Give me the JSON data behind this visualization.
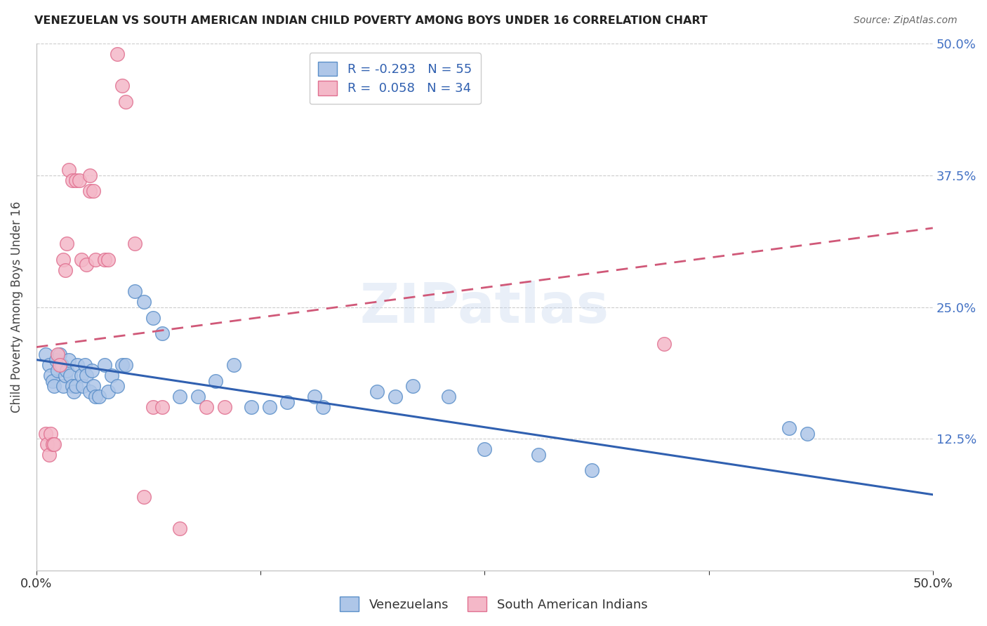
{
  "title": "VENEZUELAN VS SOUTH AMERICAN INDIAN CHILD POVERTY AMONG BOYS UNDER 16 CORRELATION CHART",
  "source": "Source: ZipAtlas.com",
  "ylabel": "Child Poverty Among Boys Under 16",
  "xlim": [
    0.0,
    0.5
  ],
  "ylim": [
    0.0,
    0.5
  ],
  "blue_R": "-0.293",
  "blue_N": "55",
  "pink_R": "0.058",
  "pink_N": "34",
  "blue_color": "#aec6e8",
  "pink_color": "#f4b8c8",
  "blue_edge_color": "#5b8fc9",
  "pink_edge_color": "#e07090",
  "blue_line_color": "#3060b0",
  "pink_line_color": "#d05878",
  "watermark": "ZIPatlas",
  "legend_label_blue": "Venezuelans",
  "legend_label_pink": "South American Indians",
  "blue_points_x": [
    0.005,
    0.007,
    0.008,
    0.009,
    0.01,
    0.011,
    0.012,
    0.013,
    0.014,
    0.015,
    0.016,
    0.017,
    0.018,
    0.019,
    0.02,
    0.021,
    0.022,
    0.023,
    0.025,
    0.026,
    0.027,
    0.028,
    0.03,
    0.031,
    0.032,
    0.033,
    0.035,
    0.038,
    0.04,
    0.042,
    0.045,
    0.048,
    0.05,
    0.055,
    0.06,
    0.065,
    0.07,
    0.08,
    0.09,
    0.1,
    0.11,
    0.12,
    0.13,
    0.14,
    0.155,
    0.16,
    0.19,
    0.2,
    0.21,
    0.23,
    0.25,
    0.28,
    0.31,
    0.42,
    0.43
  ],
  "blue_points_y": [
    0.205,
    0.195,
    0.185,
    0.18,
    0.175,
    0.2,
    0.19,
    0.205,
    0.195,
    0.175,
    0.185,
    0.19,
    0.2,
    0.185,
    0.175,
    0.17,
    0.175,
    0.195,
    0.185,
    0.175,
    0.195,
    0.185,
    0.17,
    0.19,
    0.175,
    0.165,
    0.165,
    0.195,
    0.17,
    0.185,
    0.175,
    0.195,
    0.195,
    0.265,
    0.255,
    0.24,
    0.225,
    0.165,
    0.165,
    0.18,
    0.195,
    0.155,
    0.155,
    0.16,
    0.165,
    0.155,
    0.17,
    0.165,
    0.175,
    0.165,
    0.115,
    0.11,
    0.095,
    0.135,
    0.13
  ],
  "pink_points_x": [
    0.005,
    0.006,
    0.007,
    0.008,
    0.009,
    0.01,
    0.012,
    0.013,
    0.015,
    0.016,
    0.017,
    0.018,
    0.02,
    0.022,
    0.024,
    0.025,
    0.028,
    0.03,
    0.03,
    0.032,
    0.033,
    0.038,
    0.04,
    0.045,
    0.048,
    0.05,
    0.055,
    0.06,
    0.065,
    0.07,
    0.08,
    0.095,
    0.105,
    0.35
  ],
  "pink_points_y": [
    0.13,
    0.12,
    0.11,
    0.13,
    0.12,
    0.12,
    0.205,
    0.195,
    0.295,
    0.285,
    0.31,
    0.38,
    0.37,
    0.37,
    0.37,
    0.295,
    0.29,
    0.36,
    0.375,
    0.36,
    0.295,
    0.295,
    0.295,
    0.49,
    0.46,
    0.445,
    0.31,
    0.07,
    0.155,
    0.155,
    0.04,
    0.155,
    0.155,
    0.215
  ],
  "blue_line_x": [
    0.0,
    0.5
  ],
  "blue_line_y": [
    0.2,
    0.072
  ],
  "pink_line_x": [
    0.0,
    0.5
  ],
  "pink_line_y": [
    0.212,
    0.325
  ]
}
